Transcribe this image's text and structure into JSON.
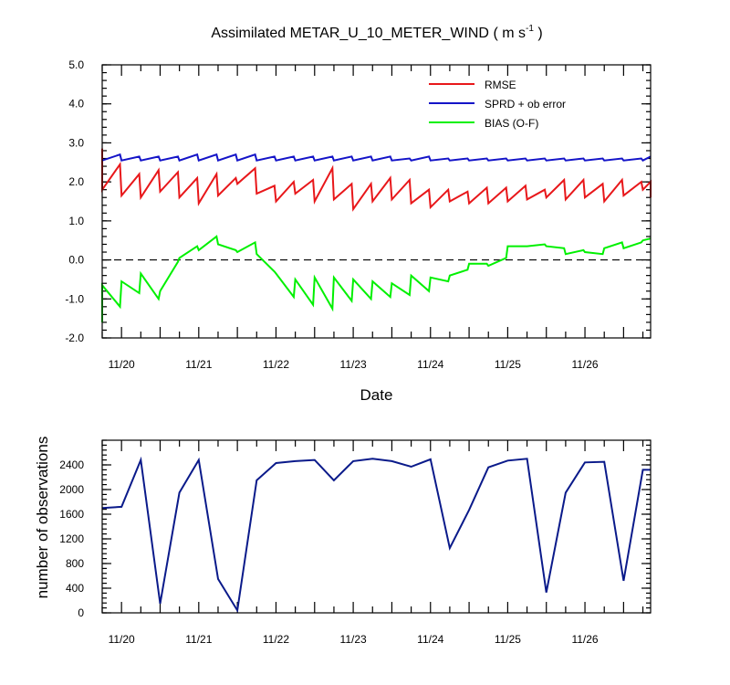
{
  "title": "Assimilated METAR_U_10_METER_WIND",
  "title_units": "( m s",
  "title_units_sup": "-1",
  "title_units_close": " )",
  "chart_data": [
    {
      "type": "line",
      "xlabel": "Date",
      "ylabel": "",
      "xlim": [
        19.75,
        26.85
      ],
      "ylim": [
        -2.0,
        5.0
      ],
      "yticks": [
        -2.0,
        -1.0,
        0.0,
        1.0,
        2.0,
        3.0,
        4.0,
        5.0
      ],
      "ytick_labels": [
        "-2.0",
        "-1.0",
        "0.0",
        "1.0",
        "2.0",
        "3.0",
        "4.0",
        "5.0"
      ],
      "xticks": [
        20,
        21,
        22,
        23,
        24,
        25,
        26
      ],
      "xtick_labels": [
        "11/20",
        "11/21",
        "11/22",
        "11/23",
        "11/24",
        "11/25",
        "11/26"
      ],
      "zero_line": "dashed",
      "legend_position": "top-right",
      "series": [
        {
          "name": "RMSE",
          "color": "#e8171a",
          "x": [
            19.75,
            19.75,
            19.98,
            20.0,
            20.23,
            20.25,
            20.48,
            20.5,
            20.73,
            20.75,
            20.98,
            21.0,
            21.23,
            21.25,
            21.48,
            21.5,
            21.73,
            21.75,
            21.98,
            22.0,
            22.23,
            22.25,
            22.48,
            22.5,
            22.73,
            22.75,
            22.98,
            23.0,
            23.23,
            23.25,
            23.48,
            23.5,
            23.73,
            23.75,
            23.98,
            24.0,
            24.23,
            24.25,
            24.48,
            24.5,
            24.73,
            24.75,
            24.98,
            25.0,
            25.23,
            25.25,
            25.48,
            25.5,
            25.73,
            25.75,
            25.98,
            26.0,
            26.23,
            26.25,
            26.48,
            26.5,
            26.73,
            26.75,
            26.85,
            26.85
          ],
          "values": [
            2.85,
            1.8,
            2.45,
            1.65,
            2.2,
            1.6,
            2.3,
            1.75,
            2.25,
            1.6,
            2.1,
            1.45,
            2.2,
            1.65,
            2.1,
            1.95,
            2.35,
            1.7,
            1.9,
            1.5,
            2.0,
            1.7,
            2.05,
            1.5,
            2.35,
            1.55,
            1.95,
            1.3,
            1.95,
            1.5,
            2.1,
            1.55,
            2.05,
            1.45,
            1.8,
            1.35,
            1.8,
            1.5,
            1.75,
            1.45,
            1.85,
            1.45,
            1.85,
            1.5,
            1.9,
            1.55,
            1.8,
            1.6,
            2.05,
            1.55,
            2.05,
            1.6,
            1.95,
            1.5,
            2.05,
            1.65,
            2.0,
            1.8,
            2.0,
            1.6
          ]
        },
        {
          "name": "SPRD + ob error",
          "color": "#1414c8",
          "x": [
            19.75,
            19.98,
            20.0,
            20.23,
            20.25,
            20.48,
            20.5,
            20.73,
            20.75,
            20.98,
            21.0,
            21.23,
            21.25,
            21.48,
            21.5,
            21.73,
            21.75,
            21.98,
            22.0,
            22.23,
            22.25,
            22.48,
            22.5,
            22.73,
            22.75,
            22.98,
            23.0,
            23.23,
            23.25,
            23.48,
            23.5,
            23.73,
            23.75,
            23.98,
            24.0,
            24.23,
            24.25,
            24.48,
            24.5,
            24.73,
            24.75,
            24.98,
            25.0,
            25.23,
            25.25,
            25.48,
            25.5,
            25.73,
            25.75,
            25.98,
            26.0,
            26.23,
            26.25,
            26.48,
            26.5,
            26.73,
            26.75,
            26.85
          ],
          "values": [
            2.55,
            2.7,
            2.55,
            2.65,
            2.55,
            2.65,
            2.55,
            2.65,
            2.55,
            2.7,
            2.55,
            2.7,
            2.55,
            2.7,
            2.55,
            2.7,
            2.55,
            2.65,
            2.55,
            2.65,
            2.55,
            2.65,
            2.55,
            2.65,
            2.55,
            2.65,
            2.55,
            2.65,
            2.55,
            2.65,
            2.55,
            2.6,
            2.55,
            2.65,
            2.55,
            2.6,
            2.55,
            2.6,
            2.55,
            2.6,
            2.55,
            2.6,
            2.55,
            2.6,
            2.55,
            2.6,
            2.55,
            2.6,
            2.55,
            2.6,
            2.55,
            2.6,
            2.55,
            2.6,
            2.55,
            2.6,
            2.55,
            2.65
          ]
        },
        {
          "name": "BIAS (O-F)",
          "color": "#00f000",
          "x": [
            19.75,
            19.75,
            19.98,
            20.0,
            20.23,
            20.25,
            20.48,
            20.5,
            20.73,
            20.75,
            20.98,
            21.0,
            21.23,
            21.25,
            21.48,
            21.5,
            21.73,
            21.75,
            21.98,
            22.0,
            22.23,
            22.25,
            22.48,
            22.5,
            22.73,
            22.75,
            22.98,
            23.0,
            23.23,
            23.25,
            23.48,
            23.5,
            23.73,
            23.75,
            23.98,
            24.0,
            24.23,
            24.25,
            24.48,
            24.5,
            24.73,
            24.75,
            24.98,
            25.0,
            25.23,
            25.25,
            25.48,
            25.5,
            25.73,
            25.75,
            25.98,
            26.0,
            26.23,
            26.25,
            26.48,
            26.5,
            26.73,
            26.75,
            26.85
          ],
          "values": [
            -1.6,
            -0.65,
            -1.2,
            -0.55,
            -0.85,
            -0.35,
            -1.0,
            -0.8,
            -0.05,
            0.05,
            0.35,
            0.25,
            0.6,
            0.4,
            0.25,
            0.2,
            0.45,
            0.15,
            -0.3,
            -0.35,
            -0.95,
            -0.5,
            -1.15,
            -0.45,
            -1.25,
            -0.45,
            -1.05,
            -0.5,
            -1.0,
            -0.55,
            -0.95,
            -0.6,
            -0.9,
            -0.4,
            -0.8,
            -0.45,
            -0.55,
            -0.4,
            -0.25,
            -0.1,
            -0.1,
            -0.15,
            0.05,
            0.35,
            0.35,
            0.35,
            0.4,
            0.35,
            0.3,
            0.15,
            0.25,
            0.2,
            0.15,
            0.3,
            0.45,
            0.3,
            0.45,
            0.5,
            0.55
          ]
        }
      ]
    },
    {
      "type": "line",
      "xlabel": "",
      "ylabel": "number of observations",
      "xlim": [
        19.75,
        26.85
      ],
      "ylim": [
        0,
        2800
      ],
      "yticks": [
        0,
        400,
        800,
        1200,
        1600,
        2000,
        2400
      ],
      "ytick_labels": [
        "0",
        "400",
        "800",
        "1200",
        "1600",
        "2000",
        "2400"
      ],
      "xticks": [
        20,
        21,
        22,
        23,
        24,
        25,
        26
      ],
      "xtick_labels": [
        "11/20",
        "11/21",
        "11/22",
        "11/23",
        "11/24",
        "11/25",
        "11/26"
      ],
      "series": [
        {
          "color": "#0a1a8a",
          "x": [
            19.75,
            20.0,
            20.25,
            20.5,
            20.75,
            21.0,
            21.25,
            21.5,
            21.75,
            22.0,
            22.25,
            22.5,
            22.75,
            23.0,
            23.25,
            23.5,
            23.75,
            24.0,
            24.25,
            24.5,
            24.75,
            25.0,
            25.25,
            25.5,
            25.75,
            26.0,
            26.25,
            26.5,
            26.75,
            26.85
          ],
          "values": [
            1700,
            1720,
            2480,
            150,
            1950,
            2480,
            550,
            40,
            2150,
            2430,
            2460,
            2480,
            2150,
            2460,
            2500,
            2460,
            2370,
            2490,
            1050,
            1670,
            2360,
            2470,
            2500,
            330,
            1950,
            2440,
            2450,
            520,
            2320,
            2320
          ]
        }
      ]
    }
  ]
}
